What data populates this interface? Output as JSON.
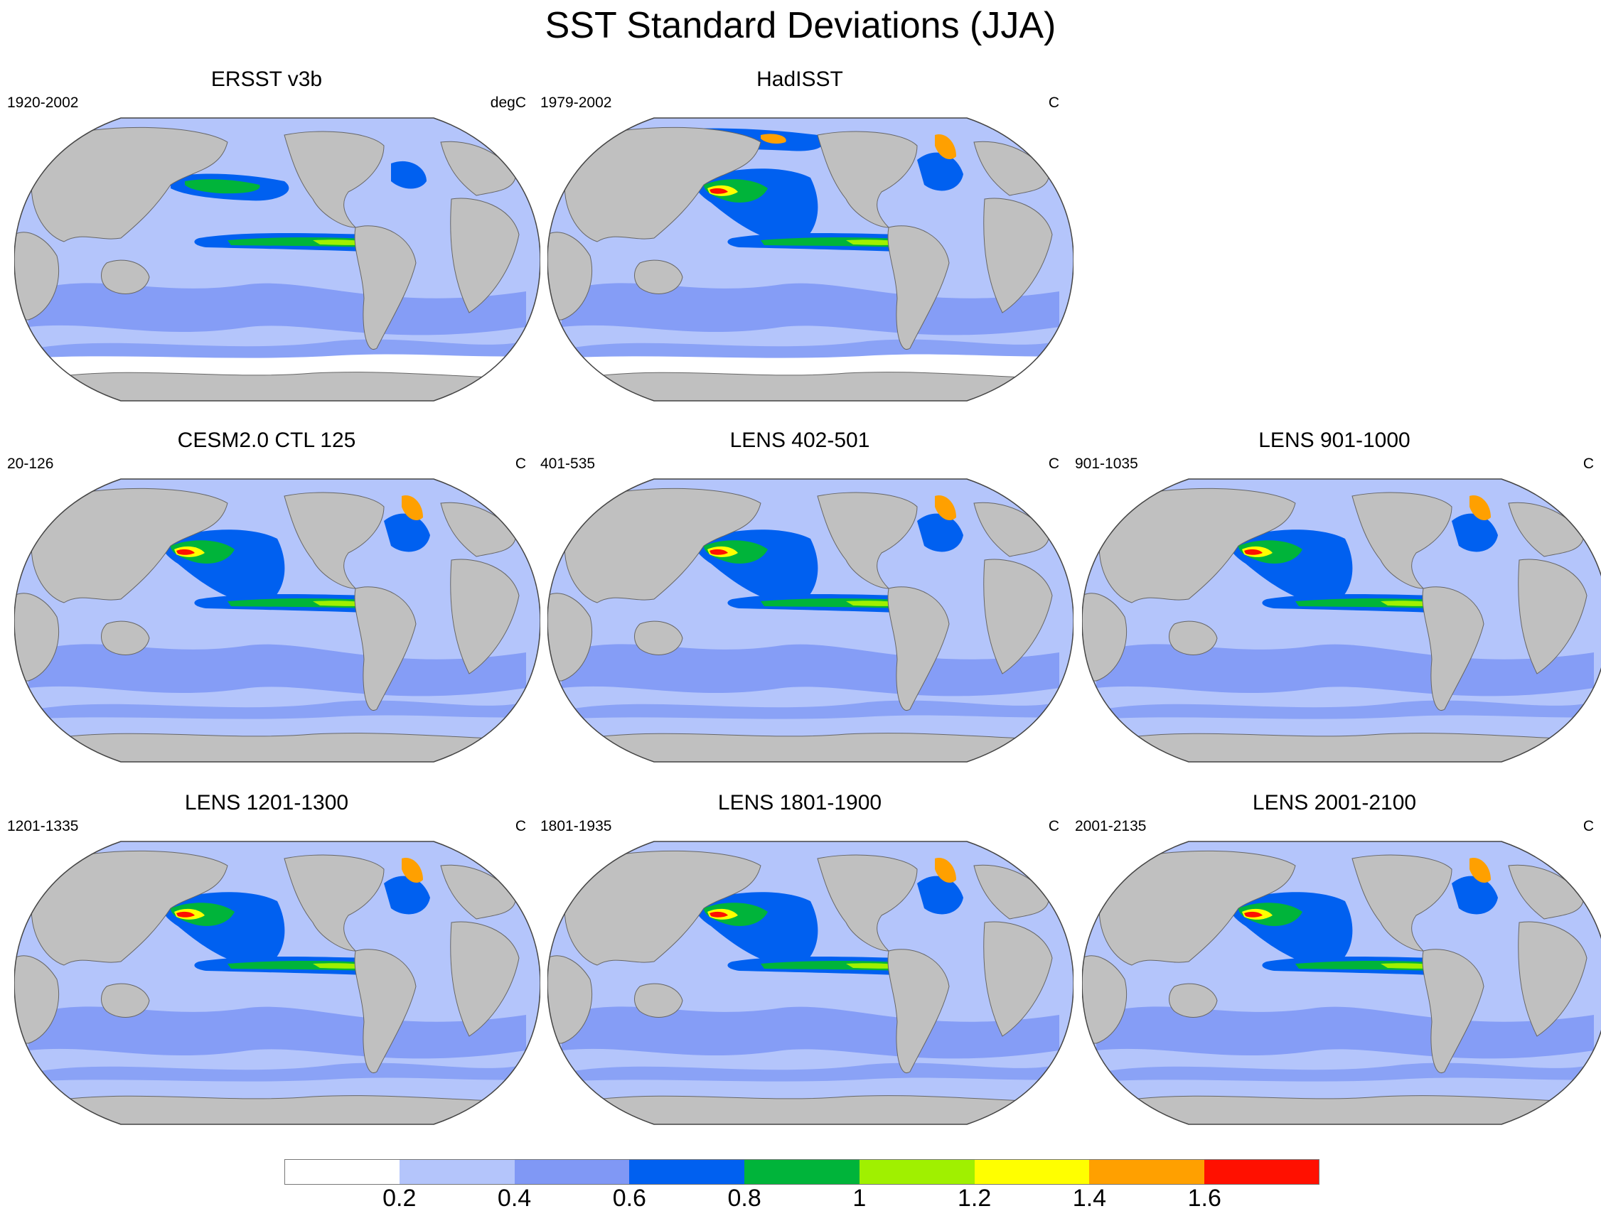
{
  "figure_title": "SST Standard Deviations (JJA)",
  "colors": {
    "land": "#c0c0c0",
    "bins": [
      "#ffffff",
      "#b4c5fb",
      "#8098f5",
      "#0060f0",
      "#00b43a",
      "#a0f000",
      "#ffff00",
      "#ffa000",
      "#ff1000"
    ],
    "tropical_core": "#00b43a",
    "strong": "#a0f000"
  },
  "panels": [
    {
      "title": "ERSST v3b",
      "years": "1920-2002",
      "units": "degC",
      "variant": "obs"
    },
    {
      "title": "HadISST",
      "years": "1979-2002",
      "units": "C",
      "variant": "obs2"
    },
    {
      "title": "CESM2.0 CTL 125",
      "years": "20-126",
      "units": "C",
      "variant": "model"
    },
    {
      "title": "LENS 402-501",
      "years": "401-535",
      "units": "C",
      "variant": "model"
    },
    {
      "title": "LENS 901-1000",
      "years": "901-1035",
      "units": "C",
      "variant": "model"
    },
    {
      "title": "LENS 1201-1300",
      "years": "1201-1335",
      "units": "C",
      "variant": "model"
    },
    {
      "title": "LENS 1801-1900",
      "years": "1801-1935",
      "units": "C",
      "variant": "model"
    },
    {
      "title": "LENS 2001-2100",
      "years": "2001-2135",
      "units": "C",
      "variant": "model"
    }
  ],
  "colorbar": {
    "labels": [
      "0.2",
      "0.4",
      "0.6",
      "0.8",
      "1",
      "1.2",
      "1.4",
      "1.6"
    ]
  }
}
